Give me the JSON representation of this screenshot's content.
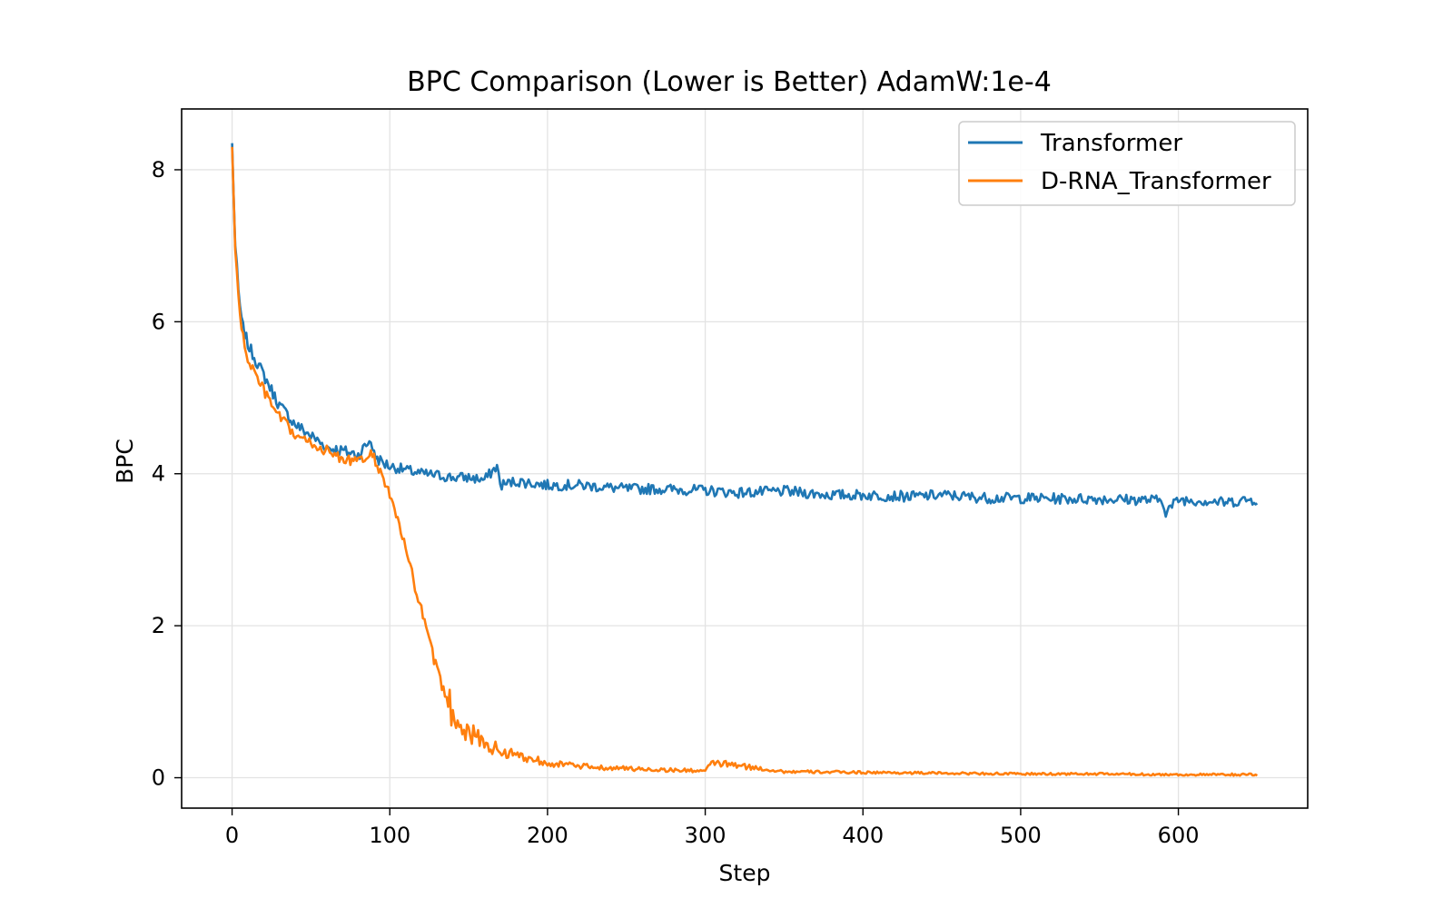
{
  "chart_data": {
    "type": "line",
    "title": "BPC Comparison (Lower is Better) AdamW:1e-4",
    "xlabel": "Step",
    "ylabel": "BPC",
    "xlim": [
      -32,
      682
    ],
    "ylim": [
      -0.4,
      8.8
    ],
    "xticks": [
      0,
      100,
      200,
      300,
      400,
      500,
      600
    ],
    "yticks": [
      0,
      2,
      4,
      6,
      8
    ],
    "grid": true,
    "legend_position": "top-right",
    "series": [
      {
        "name": "Transformer",
        "color": "#1f77b4",
        "x": [
          0,
          2,
          4,
          6,
          8,
          10,
          15,
          20,
          25,
          30,
          40,
          50,
          60,
          70,
          80,
          88,
          90,
          95,
          100,
          110,
          120,
          130,
          140,
          150,
          160,
          168,
          170,
          180,
          200,
          220,
          250,
          270,
          300,
          320,
          350,
          380,
          400,
          430,
          450,
          480,
          500,
          530,
          550,
          570,
          590,
          592,
          600,
          620,
          630,
          640,
          650
        ],
        "y": [
          8.35,
          7.0,
          6.4,
          6.0,
          5.85,
          5.7,
          5.5,
          5.3,
          5.1,
          4.9,
          4.65,
          4.5,
          4.35,
          4.3,
          4.25,
          4.45,
          4.25,
          4.15,
          4.1,
          4.05,
          4.0,
          3.98,
          3.95,
          3.95,
          3.92,
          4.1,
          3.85,
          3.9,
          3.85,
          3.85,
          3.8,
          3.8,
          3.78,
          3.75,
          3.77,
          3.72,
          3.72,
          3.7,
          3.72,
          3.68,
          3.68,
          3.67,
          3.67,
          3.66,
          3.65,
          3.5,
          3.66,
          3.64,
          3.62,
          3.65,
          3.66
        ]
      },
      {
        "name": "D-RNA_Transformer",
        "color": "#ff7f0e",
        "x": [
          0,
          2,
          4,
          6,
          8,
          10,
          15,
          20,
          25,
          30,
          40,
          50,
          60,
          70,
          80,
          88,
          90,
          95,
          100,
          105,
          110,
          115,
          120,
          125,
          130,
          135,
          140,
          150,
          160,
          170,
          180,
          190,
          200,
          220,
          250,
          280,
          300,
          305,
          350,
          400,
          450,
          500,
          550,
          600,
          650
        ],
        "y": [
          8.3,
          7.0,
          6.3,
          5.9,
          5.7,
          5.5,
          5.3,
          5.1,
          4.9,
          4.75,
          4.5,
          4.4,
          4.3,
          4.2,
          4.15,
          4.25,
          4.2,
          4.0,
          3.7,
          3.4,
          3.0,
          2.6,
          2.2,
          1.8,
          1.4,
          1.1,
          0.85,
          0.6,
          0.45,
          0.35,
          0.3,
          0.25,
          0.2,
          0.15,
          0.12,
          0.1,
          0.09,
          0.2,
          0.08,
          0.07,
          0.06,
          0.05,
          0.05,
          0.04,
          0.04
        ]
      }
    ]
  }
}
